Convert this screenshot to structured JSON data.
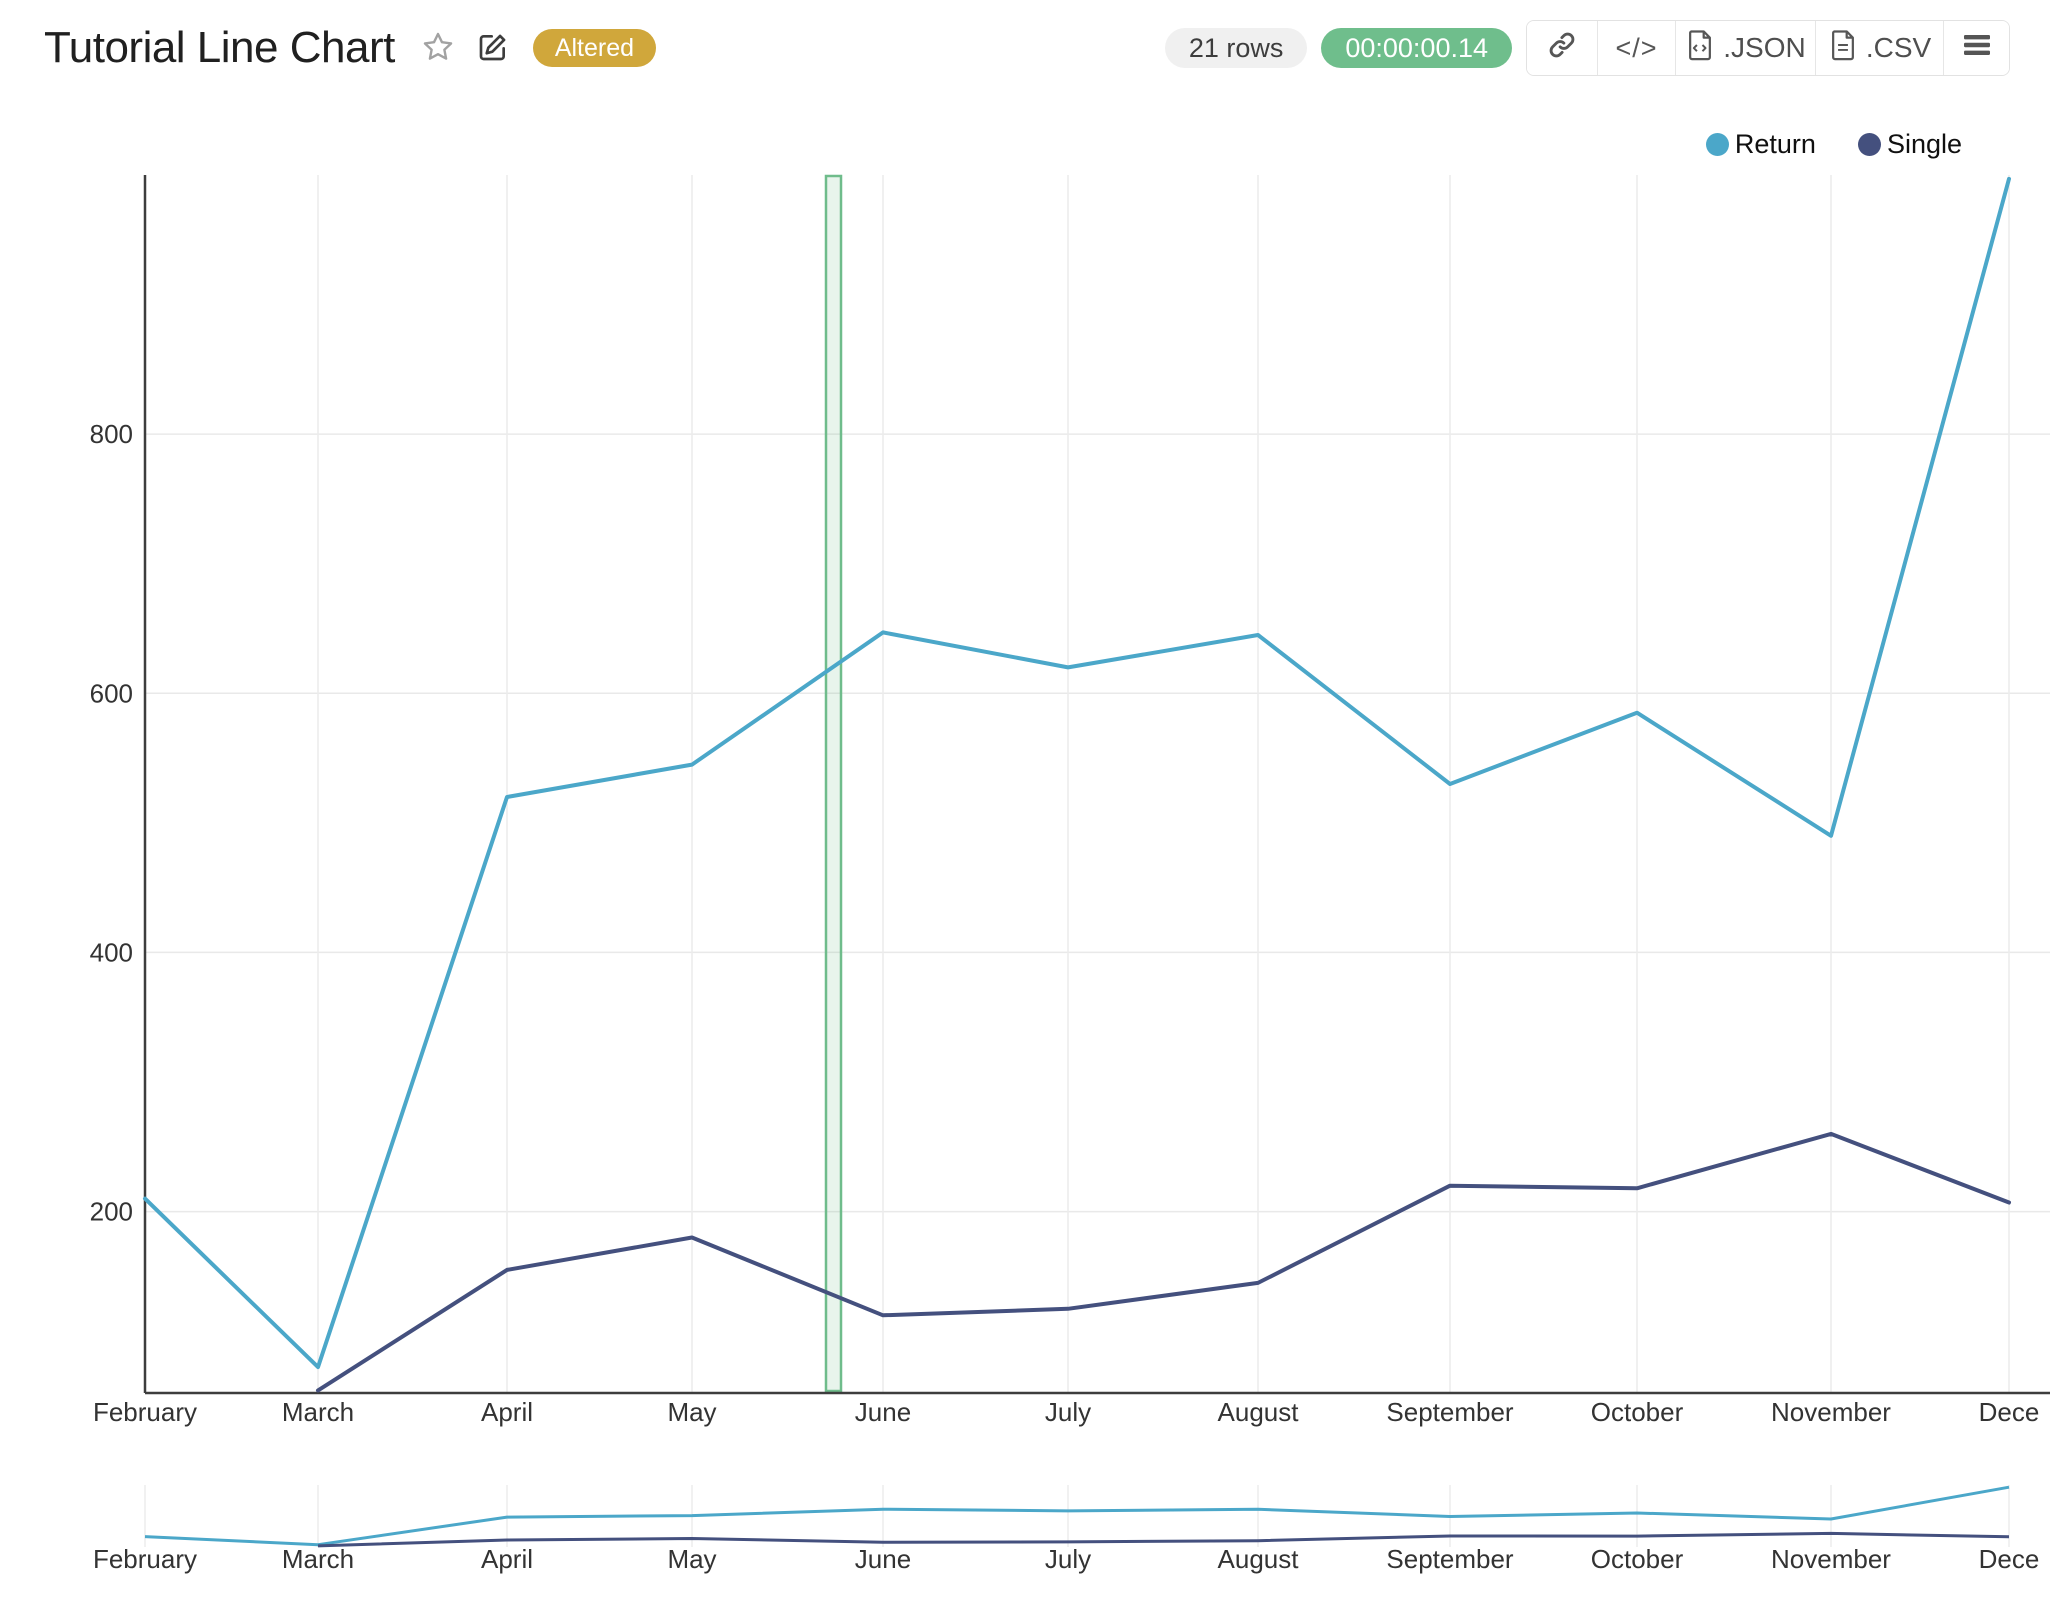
{
  "header": {
    "title": "Tutorial Line Chart",
    "altered_badge": "Altered",
    "rows_count": "21 rows",
    "execution_time": "00:00:00.14",
    "export_json": ".JSON",
    "export_csv": ".CSV",
    "colors": {
      "altered_bg": "#D0A73B",
      "rows_bg": "#F0F0F0",
      "timer_bg": "#6FBE8C"
    }
  },
  "legend": {
    "items": [
      {
        "label": "Return"
      },
      {
        "label": "Single"
      }
    ]
  },
  "chart_data": {
    "type": "line",
    "title": "",
    "xlabel": "",
    "ylabel": "",
    "categories": [
      "February",
      "March",
      "April",
      "May",
      "June",
      "July",
      "August",
      "September",
      "October",
      "November",
      "December"
    ],
    "x_tick_labels": [
      "February",
      "March",
      "April",
      "May",
      "June",
      "July",
      "August",
      "September",
      "October",
      "November",
      "Dece"
    ],
    "series": [
      {
        "name": "Return",
        "color": "#4BA7C9",
        "values": [
          210,
          80,
          520,
          545,
          647,
          620,
          645,
          530,
          585,
          490,
          997
        ]
      },
      {
        "name": "Single",
        "color": "#44507E",
        "values": [
          null,
          62,
          155,
          180,
          120,
          125,
          145,
          220,
          218,
          260,
          207
        ]
      }
    ],
    "yticks": [
      200,
      400,
      600,
      800
    ],
    "ylim": [
      60,
      1000
    ],
    "grid": true,
    "legend_position": "top-right",
    "selection_band": {
      "between": [
        "May",
        "June"
      ],
      "color": "#6FBC8B"
    },
    "rangeslider": true
  }
}
